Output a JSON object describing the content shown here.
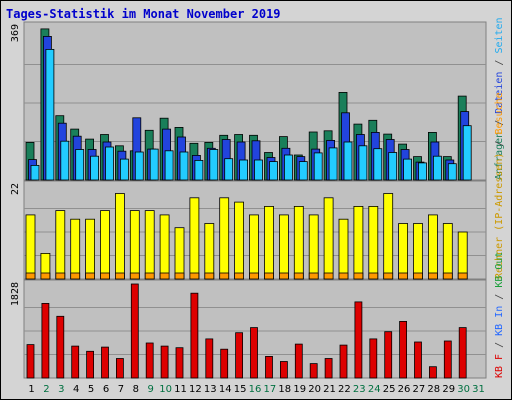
{
  "title": "Tages-Statistik im Monat November 2019",
  "chart_data": [
    {
      "type": "bar",
      "name": "panel-top",
      "y_max_label": "369",
      "ylim": [
        0,
        369
      ],
      "categories": [
        "1",
        "2",
        "3",
        "4",
        "5",
        "6",
        "7",
        "8",
        "9",
        "10",
        "11",
        "12",
        "13",
        "14",
        "15",
        "16",
        "17",
        "18",
        "19",
        "20",
        "21",
        "22",
        "23",
        "24",
        "25",
        "26",
        "27",
        "28",
        "29",
        "30",
        "31"
      ],
      "series": [
        {
          "name": "Anfragen",
          "color": "#1a7f5a",
          "values": [
            90,
            362,
            154,
            122,
            98,
            109,
            82,
            70,
            119,
            148,
            126,
            88,
            90,
            107,
            109,
            107,
            66,
            104,
            60,
            115,
            118,
            210,
            134,
            143,
            110,
            86,
            56,
            114,
            56,
            201,
            null
          ]
        },
        {
          "name": "Dateien",
          "color": "#2244dd",
          "values": [
            49,
            344,
            136,
            105,
            73,
            91,
            69,
            149,
            74,
            122,
            103,
            59,
            76,
            97,
            91,
            94,
            54,
            76,
            56,
            74,
            95,
            161,
            109,
            114,
            97,
            73,
            43,
            91,
            48,
            164,
            null
          ]
        },
        {
          "name": "Seiten",
          "color": "#22ccff",
          "values": [
            35,
            313,
            93,
            73,
            57,
            79,
            50,
            67,
            74,
            70,
            67,
            47,
            73,
            51,
            48,
            48,
            44,
            60,
            44,
            65,
            77,
            91,
            82,
            75,
            66,
            50,
            41,
            57,
            39,
            130,
            null
          ]
        }
      ]
    },
    {
      "type": "bar",
      "name": "panel-middle",
      "y_max_label": "22",
      "ylim": [
        0,
        22
      ],
      "categories": [
        "1",
        "2",
        "3",
        "4",
        "5",
        "6",
        "7",
        "8",
        "9",
        "10",
        "11",
        "12",
        "13",
        "14",
        "15",
        "16",
        "17",
        "18",
        "19",
        "20",
        "21",
        "22",
        "23",
        "24",
        "25",
        "26",
        "27",
        "28",
        "29",
        "30",
        "31"
      ],
      "series": [
        {
          "name": "Rechner",
          "color": "#ffff00",
          "values": [
            15,
            6,
            16,
            14,
            14,
            16,
            20,
            16,
            16,
            15,
            12,
            19,
            13,
            19,
            18,
            15,
            17,
            15,
            17,
            15,
            19,
            14,
            17,
            17,
            20,
            13,
            13,
            15,
            13,
            11,
            null
          ]
        },
        {
          "name": "Besuche",
          "color": "#ff9900",
          "values": [
            1,
            1,
            1,
            1,
            1,
            1,
            1,
            1,
            1,
            1,
            1,
            1,
            1,
            1,
            1,
            1,
            1,
            1,
            1,
            1,
            1,
            1,
            1,
            1,
            1,
            1,
            1,
            1,
            1,
            1,
            null
          ]
        }
      ]
    },
    {
      "type": "bar",
      "name": "panel-bottom",
      "y_max_label": "1828",
      "ylim": [
        0,
        1828
      ],
      "categories": [
        "1",
        "2",
        "3",
        "4",
        "5",
        "6",
        "7",
        "8",
        "9",
        "10",
        "11",
        "12",
        "13",
        "14",
        "15",
        "16",
        "17",
        "18",
        "19",
        "20",
        "21",
        "22",
        "23",
        "24",
        "25",
        "26",
        "27",
        "28",
        "29",
        "30",
        "31"
      ],
      "series": [
        {
          "name": "KB F",
          "color": "#dd0000",
          "values": [
            650,
            1450,
            1200,
            620,
            520,
            600,
            380,
            1828,
            680,
            620,
            590,
            1650,
            760,
            560,
            880,
            980,
            420,
            320,
            660,
            280,
            380,
            640,
            1480,
            760,
            900,
            1100,
            700,
            220,
            720,
            980,
            null
          ]
        }
      ]
    }
  ],
  "legend": {
    "top": [
      {
        "text": "Anfragen",
        "color": "#1a7f5a"
      },
      {
        "text": " / ",
        "color": "#444444"
      },
      {
        "text": "Dateien",
        "color": "#2244dd"
      },
      {
        "text": " / ",
        "color": "#444444"
      },
      {
        "text": "Seiten",
        "color": "#22aaee"
      }
    ],
    "middle": [
      {
        "text": "Rechner (IP-Adressen)",
        "color": "#cc9900"
      },
      {
        "text": " / ",
        "color": "#444444"
      },
      {
        "text": "Besuche",
        "color": "#ff9900"
      }
    ],
    "bottom": [
      {
        "text": "KB F",
        "color": "#dd0000"
      },
      {
        "text": " / ",
        "color": "#444444"
      },
      {
        "text": "KB In",
        "color": "#2266ff"
      },
      {
        "text": " / ",
        "color": "#444444"
      },
      {
        "text": "KB Out",
        "color": "#1a9f3a"
      }
    ]
  },
  "x_labels": [
    {
      "text": "1",
      "color": "#000000"
    },
    {
      "text": "2",
      "color": "#007040"
    },
    {
      "text": "3",
      "color": "#007040"
    },
    {
      "text": "4",
      "color": "#000000"
    },
    {
      "text": "5",
      "color": "#000000"
    },
    {
      "text": "6",
      "color": "#000000"
    },
    {
      "text": "7",
      "color": "#000000"
    },
    {
      "text": "8",
      "color": "#000000"
    },
    {
      "text": "9",
      "color": "#007040"
    },
    {
      "text": "10",
      "color": "#007040"
    },
    {
      "text": "11",
      "color": "#000000"
    },
    {
      "text": "12",
      "color": "#000000"
    },
    {
      "text": "13",
      "color": "#000000"
    },
    {
      "text": "14",
      "color": "#000000"
    },
    {
      "text": "15",
      "color": "#000000"
    },
    {
      "text": "16",
      "color": "#007040"
    },
    {
      "text": "17",
      "color": "#007040"
    },
    {
      "text": "18",
      "color": "#000000"
    },
    {
      "text": "19",
      "color": "#000000"
    },
    {
      "text": "20",
      "color": "#000000"
    },
    {
      "text": "21",
      "color": "#000000"
    },
    {
      "text": "22",
      "color": "#000000"
    },
    {
      "text": "23",
      "color": "#007040"
    },
    {
      "text": "24",
      "color": "#007040"
    },
    {
      "text": "25",
      "color": "#000000"
    },
    {
      "text": "26",
      "color": "#000000"
    },
    {
      "text": "27",
      "color": "#000000"
    },
    {
      "text": "28",
      "color": "#000000"
    },
    {
      "text": "29",
      "color": "#000000"
    },
    {
      "text": "30",
      "color": "#007040"
    },
    {
      "text": "31",
      "color": "#007040"
    }
  ]
}
